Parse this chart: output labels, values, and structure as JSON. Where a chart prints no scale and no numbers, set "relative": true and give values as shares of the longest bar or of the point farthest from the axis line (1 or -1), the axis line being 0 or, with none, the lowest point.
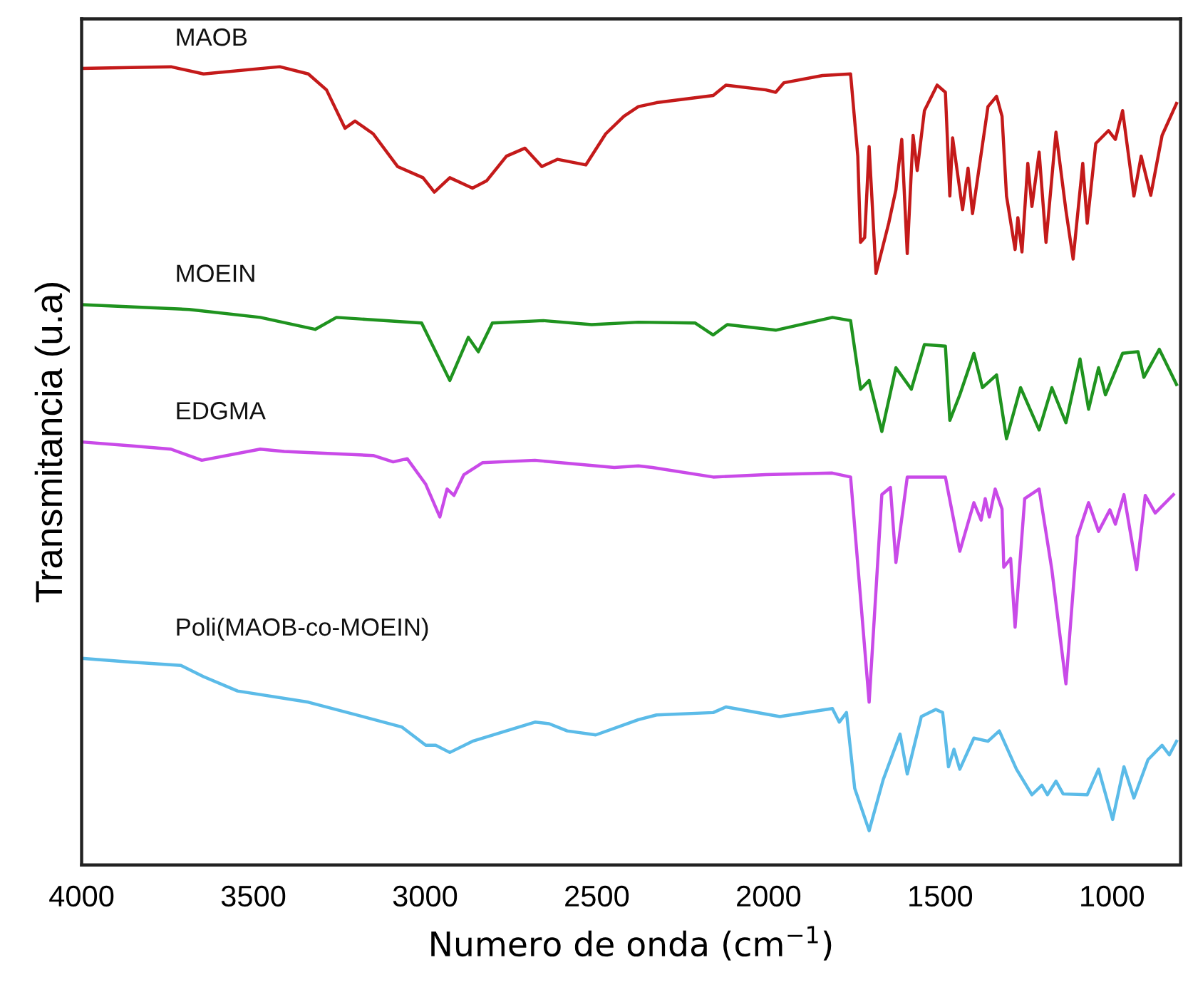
{
  "chart_data": {
    "type": "line",
    "relative": true,
    "xlabel": "Numero de onda (cm$^{−1}$)",
    "ylabel": "Transmitancia (u.a)",
    "xlim": [
      4000,
      800
    ],
    "xticks": [
      4000,
      3500,
      3000,
      2500,
      2000,
      1500,
      1000
    ],
    "grid": false,
    "legend": false,
    "marker": "none",
    "line_style": "solid",
    "tick_labels": "x",
    "series": [
      {
        "name": "MAOB",
        "color": "#c41a1a",
        "x": [
          4000,
          3740,
          3645,
          3423,
          3340,
          3287,
          3233,
          3204,
          3151,
          3080,
          3006,
          2973,
          2928,
          2862,
          2821,
          2763,
          2709,
          2660,
          2614,
          2532,
          2474,
          2421,
          2379,
          2326,
          2161,
          2124,
          2008,
          1979,
          1955,
          1843,
          1761,
          1740,
          1732,
          1720,
          1707,
          1687,
          1650,
          1629,
          1612,
          1596,
          1579,
          1567,
          1546,
          1509,
          1485,
          1472,
          1464,
          1435,
          1419,
          1406,
          1361,
          1336,
          1320,
          1307,
          1282,
          1274,
          1262,
          1245,
          1233,
          1212,
          1192,
          1163,
          1134,
          1113,
          1085,
          1072,
          1047,
          1010,
          990,
          969,
          936,
          915,
          887,
          854,
          812
        ],
        "values": [
          0.998,
          1.0,
          0.991,
          1.0,
          0.991,
          0.971,
          0.923,
          0.932,
          0.916,
          0.875,
          0.861,
          0.843,
          0.861,
          0.848,
          0.857,
          0.888,
          0.898,
          0.875,
          0.884,
          0.877,
          0.916,
          0.938,
          0.95,
          0.955,
          0.964,
          0.977,
          0.971,
          0.968,
          0.98,
          0.989,
          0.991,
          0.888,
          0.78,
          0.786,
          0.9,
          0.741,
          0.804,
          0.846,
          0.909,
          0.766,
          0.914,
          0.87,
          0.945,
          0.977,
          0.968,
          0.838,
          0.911,
          0.821,
          0.873,
          0.816,
          0.95,
          0.963,
          0.938,
          0.838,
          0.771,
          0.811,
          0.768,
          0.879,
          0.825,
          0.893,
          0.78,
          0.918,
          0.82,
          0.759,
          0.879,
          0.804,
          0.904,
          0.92,
          0.909,
          0.945,
          0.838,
          0.888,
          0.839,
          0.914,
          0.954
        ]
      },
      {
        "name": "MOEIN",
        "color": "#1f931f",
        "x": [
          4000,
          3687,
          3480,
          3320,
          3258,
          3010,
          2928,
          2874,
          2845,
          2804,
          2656,
          2515,
          2379,
          2214,
          2161,
          2120,
          1979,
          1814,
          1761,
          1732,
          1707,
          1670,
          1629,
          1584,
          1546,
          1485,
          1472,
          1443,
          1402,
          1377,
          1336,
          1307,
          1266,
          1212,
          1175,
          1134,
          1093,
          1068,
          1039,
          1019,
          969,
          924,
          907,
          862,
          812
        ],
        "values": [
          0.702,
          0.696,
          0.686,
          0.671,
          0.686,
          0.679,
          0.607,
          0.661,
          0.643,
          0.679,
          0.682,
          0.677,
          0.68,
          0.679,
          0.664,
          0.677,
          0.67,
          0.686,
          0.682,
          0.596,
          0.607,
          0.543,
          0.623,
          0.596,
          0.652,
          0.65,
          0.557,
          0.589,
          0.641,
          0.598,
          0.614,
          0.534,
          0.598,
          0.545,
          0.598,
          0.554,
          0.634,
          0.571,
          0.623,
          0.589,
          0.641,
          0.643,
          0.611,
          0.646,
          0.602
        ]
      },
      {
        "name": "EDGMA",
        "color": "#c94ae8",
        "x": [
          4000,
          3852,
          3740,
          3650,
          3480,
          3410,
          3151,
          3093,
          3052,
          2998,
          2957,
          2936,
          2916,
          2887,
          2833,
          2680,
          2449,
          2379,
          2338,
          2161,
          2008,
          1814,
          1761,
          1707,
          1670,
          1645,
          1629,
          1596,
          1485,
          1443,
          1402,
          1381,
          1369,
          1357,
          1340,
          1320,
          1315,
          1295,
          1282,
          1254,
          1212,
          1175,
          1134,
          1101,
          1068,
          1039,
          1006,
          990,
          965,
          928,
          903,
          874,
          821
        ],
        "values": [
          0.53,
          0.525,
          0.521,
          0.507,
          0.521,
          0.518,
          0.513,
          0.505,
          0.509,
          0.477,
          0.436,
          0.471,
          0.463,
          0.489,
          0.504,
          0.507,
          0.498,
          0.5,
          0.498,
          0.486,
          0.489,
          0.491,
          0.486,
          0.204,
          0.464,
          0.473,
          0.379,
          0.486,
          0.486,
          0.393,
          0.454,
          0.432,
          0.459,
          0.436,
          0.471,
          0.446,
          0.373,
          0.384,
          0.298,
          0.459,
          0.471,
          0.37,
          0.227,
          0.411,
          0.454,
          0.418,
          0.445,
          0.427,
          0.464,
          0.37,
          0.463,
          0.441,
          0.464
        ]
      },
      {
        "name": "Poli(MAOB-co-MOEIN)",
        "color": "#5bbbe8",
        "x": [
          4000,
          3852,
          3711,
          3645,
          3546,
          3340,
          3068,
          2998,
          2969,
          2928,
          2862,
          2680,
          2639,
          2586,
          2503,
          2379,
          2326,
          2161,
          2124,
          1967,
          1814,
          1794,
          1773,
          1749,
          1707,
          1666,
          1617,
          1596,
          1555,
          1513,
          1493,
          1476,
          1460,
          1443,
          1402,
          1361,
          1328,
          1278,
          1233,
          1204,
          1188,
          1163,
          1142,
          1072,
          1039,
          998,
          965,
          936,
          895,
          854,
          833,
          812
        ],
        "values": [
          0.259,
          0.254,
          0.25,
          0.236,
          0.218,
          0.204,
          0.173,
          0.15,
          0.15,
          0.141,
          0.155,
          0.179,
          0.177,
          0.168,
          0.163,
          0.182,
          0.188,
          0.191,
          0.198,
          0.186,
          0.196,
          0.179,
          0.191,
          0.096,
          0.043,
          0.107,
          0.164,
          0.114,
          0.186,
          0.195,
          0.191,
          0.123,
          0.145,
          0.12,
          0.159,
          0.155,
          0.168,
          0.12,
          0.088,
          0.1,
          0.088,
          0.105,
          0.089,
          0.088,
          0.12,
          0.057,
          0.123,
          0.084,
          0.132,
          0.15,
          0.138,
          0.155
        ]
      }
    ]
  }
}
